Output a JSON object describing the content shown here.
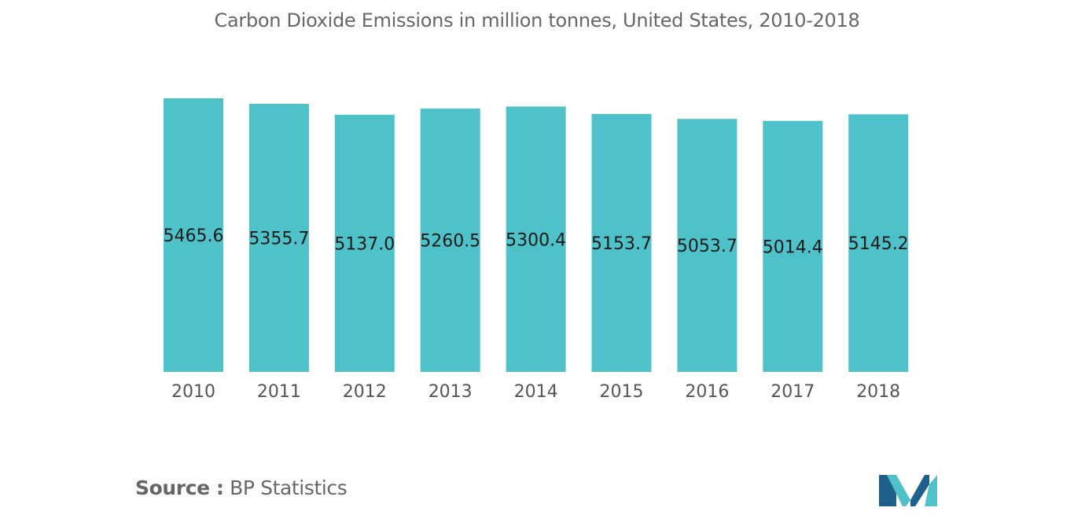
{
  "chart_data": {
    "type": "bar",
    "title": "Carbon Dioxide Emissions in million tonnes, United States, 2010-2018",
    "categories": [
      "2010",
      "2011",
      "2012",
      "2013",
      "2014",
      "2015",
      "2016",
      "2017",
      "2018"
    ],
    "values": [
      5465.6,
      5355.7,
      5137.0,
      5260.5,
      5300.4,
      5153.7,
      5053.7,
      5014.4,
      5145.2
    ],
    "value_labels": [
      "5465.6",
      "5355.7",
      "5137.0",
      "5260.5",
      "5300.4",
      "5153.7",
      "5053.7",
      "5014.4",
      "5145.2"
    ],
    "xlabel": "",
    "ylabel": "",
    "ylim": [
      0,
      5465.6
    ],
    "grid": false,
    "bar_color": "#4fc1c9"
  },
  "source": {
    "label": "Source :",
    "text": "BP Statistics"
  },
  "colors": {
    "title": "#666666",
    "label": "#1a1a1a",
    "tick": "#555555",
    "logo_dark": "#1f5f8b",
    "logo_light": "#4fc1c9"
  },
  "logo_icon": "mordor-intelligence-logo-icon"
}
